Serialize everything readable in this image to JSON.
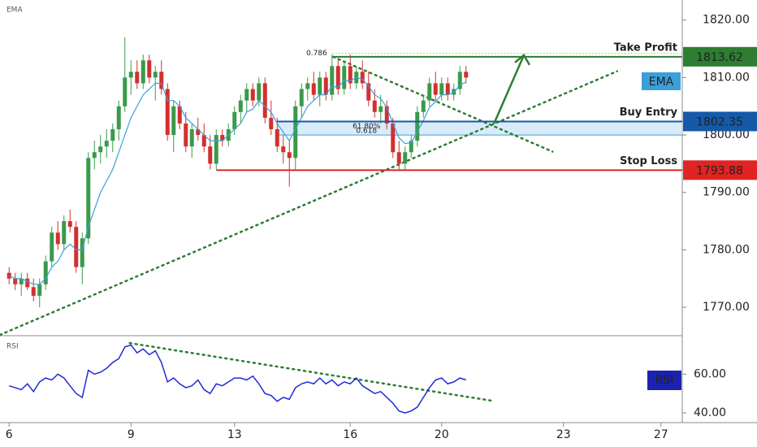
{
  "chart_data": {
    "type": "candlestick",
    "title": "EMA",
    "up_color": "#3a9a4a",
    "down_color": "#d32f2f",
    "xlim": [
      -1.5,
      110.5
    ],
    "xticks": [
      {
        "value": 0,
        "label": "6"
      },
      {
        "value": 20,
        "label": "9"
      },
      {
        "value": 37,
        "label": "13"
      },
      {
        "value": 56,
        "label": "16"
      },
      {
        "value": 71,
        "label": "20"
      },
      {
        "value": 91,
        "label": "23"
      },
      {
        "value": 107,
        "label": "27"
      }
    ],
    "ylim": [
      1765.2,
      1823.5
    ],
    "yticks": [
      {
        "value": 1820,
        "label": "1820.00"
      },
      {
        "value": 1810,
        "label": "1810.00"
      },
      {
        "value": 1800,
        "label": "1800.00"
      },
      {
        "value": 1790,
        "label": "1790.00"
      },
      {
        "value": 1780,
        "label": "1780.00"
      },
      {
        "value": 1770,
        "label": "1770.00"
      }
    ],
    "candles": [
      [
        1776,
        1777,
        1774,
        1775
      ],
      [
        1775,
        1776,
        1773,
        1774
      ],
      [
        1774,
        1776,
        1772,
        1775
      ],
      [
        1775,
        1776,
        1773,
        1773.5
      ],
      [
        1773.5,
        1775,
        1771,
        1772
      ],
      [
        1772,
        1775,
        1770,
        1774
      ],
      [
        1774,
        1779,
        1773,
        1778
      ],
      [
        1778,
        1784,
        1777,
        1783
      ],
      [
        1783,
        1785,
        1780,
        1781
      ],
      [
        1781,
        1786,
        1780,
        1785
      ],
      [
        1785,
        1787,
        1783,
        1784
      ],
      [
        1784,
        1785,
        1776,
        1777
      ],
      [
        1777,
        1783,
        1774,
        1782
      ],
      [
        1782,
        1797,
        1781,
        1796
      ],
      [
        1796,
        1799,
        1794,
        1797
      ],
      [
        1797,
        1800,
        1795,
        1798
      ],
      [
        1798,
        1801,
        1796,
        1799
      ],
      [
        1799,
        1802,
        1797,
        1801
      ],
      [
        1801,
        1806,
        1799,
        1805
      ],
      [
        1805,
        1817,
        1804,
        1810
      ],
      [
        1810,
        1813,
        1807,
        1811
      ],
      [
        1811,
        1813,
        1808,
        1809
      ],
      [
        1809,
        1814,
        1808,
        1813
      ],
      [
        1813,
        1814,
        1809,
        1810
      ],
      [
        1810,
        1812,
        1806,
        1811
      ],
      [
        1811,
        1813,
        1807,
        1808
      ],
      [
        1808,
        1809,
        1799,
        1800
      ],
      [
        1800,
        1806,
        1797,
        1805
      ],
      [
        1805,
        1806,
        1801,
        1802
      ],
      [
        1802,
        1804,
        1797,
        1798
      ],
      [
        1798,
        1802,
        1796,
        1801
      ],
      [
        1801,
        1803,
        1799,
        1800
      ],
      [
        1800,
        1802,
        1797,
        1798
      ],
      [
        1798,
        1800,
        1794,
        1795
      ],
      [
        1795,
        1801,
        1794,
        1800
      ],
      [
        1800,
        1801,
        1798,
        1799
      ],
      [
        1799,
        1802,
        1798,
        1801
      ],
      [
        1801,
        1805,
        1800,
        1804
      ],
      [
        1804,
        1807,
        1802,
        1806
      ],
      [
        1806,
        1809,
        1804,
        1808
      ],
      [
        1808,
        1809,
        1805,
        1806
      ],
      [
        1806,
        1810,
        1805,
        1809
      ],
      [
        1809,
        1810,
        1802,
        1803
      ],
      [
        1803,
        1806,
        1800,
        1801
      ],
      [
        1801,
        1803,
        1797,
        1798
      ],
      [
        1798,
        1800,
        1795,
        1797
      ],
      [
        1797,
        1799,
        1791,
        1796
      ],
      [
        1796,
        1806,
        1794,
        1805
      ],
      [
        1805,
        1809,
        1803,
        1808
      ],
      [
        1808,
        1810,
        1806,
        1809
      ],
      [
        1809,
        1811,
        1806,
        1807
      ],
      [
        1807,
        1811,
        1805,
        1810
      ],
      [
        1810,
        1811,
        1806,
        1807
      ],
      [
        1807,
        1814,
        1806,
        1812
      ],
      [
        1812,
        1813,
        1807,
        1808
      ],
      [
        1808,
        1813,
        1807,
        1812
      ],
      [
        1812,
        1814,
        1808,
        1809
      ],
      [
        1809,
        1812,
        1808,
        1811
      ],
      [
        1811,
        1813,
        1808,
        1809
      ],
      [
        1809,
        1811,
        1805,
        1806
      ],
      [
        1806,
        1808,
        1803,
        1804
      ],
      [
        1804,
        1807,
        1802,
        1805
      ],
      [
        1805,
        1806,
        1801,
        1802
      ],
      [
        1802,
        1803,
        1796,
        1797
      ],
      [
        1797,
        1799,
        1794,
        1795
      ],
      [
        1795,
        1798,
        1794,
        1797
      ],
      [
        1797,
        1800,
        1796,
        1799
      ],
      [
        1799,
        1805,
        1798,
        1804
      ],
      [
        1804,
        1807,
        1803,
        1806
      ],
      [
        1806,
        1810,
        1805,
        1809
      ],
      [
        1809,
        1811,
        1806,
        1807
      ],
      [
        1807,
        1810,
        1806,
        1809
      ],
      [
        1809,
        1810,
        1806,
        1807
      ],
      [
        1807,
        1809,
        1806,
        1808
      ],
      [
        1808,
        1812,
        1807,
        1811
      ],
      [
        1811,
        1812,
        1809,
        1810
      ]
    ],
    "ema": {
      "name": "EMA",
      "color": "#3ba0d8",
      "values": [
        1775.5,
        1775,
        1775,
        1774.5,
        1774,
        1774,
        1775,
        1777,
        1778,
        1780,
        1781,
        1780,
        1780,
        1784,
        1787,
        1790,
        1792,
        1794,
        1797,
        1800,
        1803,
        1805,
        1807,
        1808,
        1809,
        1809,
        1806,
        1806,
        1805,
        1803,
        1802,
        1801,
        1800,
        1799,
        1799,
        1799,
        1800,
        1801,
        1802,
        1804,
        1804.5,
        1806,
        1805,
        1804,
        1802,
        1800.5,
        1799,
        1801,
        1803,
        1805,
        1806,
        1807,
        1807,
        1808.5,
        1808.3,
        1809.5,
        1809.4,
        1810,
        1809.7,
        1808.5,
        1807,
        1806.3,
        1804.8,
        1802,
        1799.5,
        1798.5,
        1798.7,
        1800.5,
        1802.5,
        1804.8,
        1805.8,
        1807,
        1807,
        1807.4,
        1808.7,
        1809.2
      ]
    },
    "levels": [
      {
        "label": "Take Profit",
        "price": 1813.62,
        "color": "#2e7d32",
        "start": 53
      },
      {
        "label": "Buy Entry",
        "price": 1802.35,
        "color": "#1559a8",
        "start": 44
      },
      {
        "label": "Stop Loss",
        "price": 1793.88,
        "color": "#e02424",
        "start": 34
      }
    ],
    "fib": {
      "levels": [
        {
          "label": "0.786",
          "value": 1814.2
        },
        {
          "label": "0.618",
          "value": 1800
        }
      ],
      "zone_label": "61.80%",
      "start": 44
    },
    "trendlines": [
      {
        "points": [
          [
            -1.5,
            1765.2
          ],
          [
            99.8,
            1811.1
          ]
        ],
        "color": "#2e7d32"
      },
      {
        "points": [
          [
            53.2,
            1813.6
          ],
          [
            89.2,
            1797.1
          ]
        ],
        "color": "#2e7d32"
      }
    ],
    "arrow": {
      "points": [
        [
          79.6,
          1802
        ],
        [
          84.5,
          1813.9
        ]
      ],
      "color": "#2e7d32"
    },
    "rsi": {
      "title": "RSI",
      "name": "RSI",
      "color": "#1e2bd6",
      "ylim": [
        35,
        79
      ],
      "yticks": [
        {
          "value": 60,
          "label": "60.00"
        },
        {
          "value": 40,
          "label": "40.00"
        }
      ],
      "values": [
        54,
        53,
        52,
        55,
        51,
        56,
        58,
        57,
        60,
        58,
        54,
        50,
        48,
        62,
        60,
        61,
        63,
        66,
        68,
        74,
        75,
        71,
        73,
        70,
        72,
        66,
        56,
        58,
        55,
        53,
        54,
        57,
        52,
        50,
        55,
        54,
        56,
        58,
        58,
        57,
        59,
        55,
        50,
        49,
        46,
        48,
        47,
        53,
        55,
        56,
        55,
        58,
        55,
        57,
        54,
        56,
        55,
        58,
        54,
        52,
        50,
        51,
        48,
        45,
        41,
        40,
        41,
        43,
        48,
        53,
        57,
        58,
        55,
        56,
        58,
        57
      ],
      "trendline": {
        "points": [
          [
            19.8,
            76
          ],
          [
            79.2,
            46.3
          ]
        ],
        "color": "#2e7d32"
      }
    }
  }
}
